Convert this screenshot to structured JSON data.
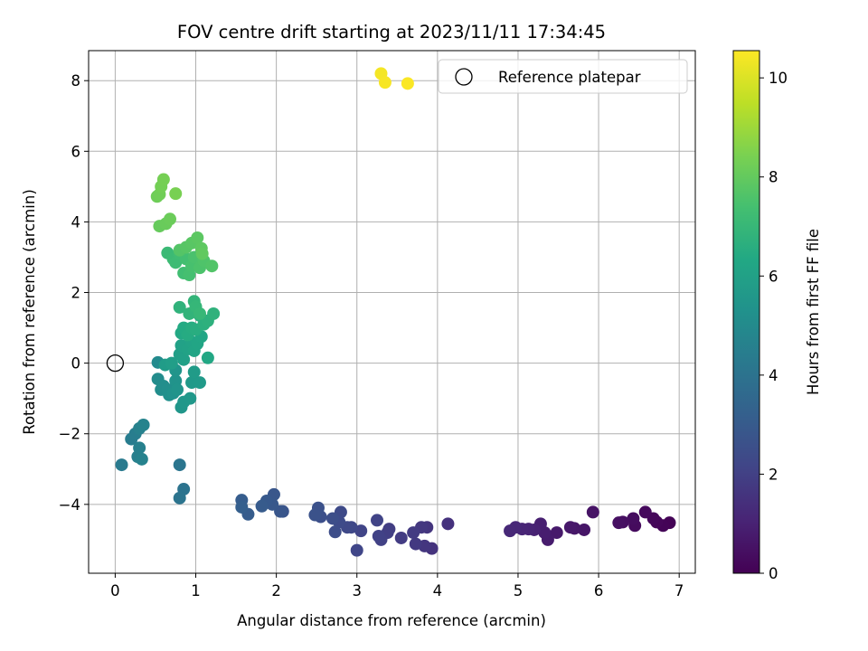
{
  "chart_data": {
    "type": "scatter",
    "title": "FOV centre drift starting at 2023/11/11 17:34:45",
    "xlabel": "Angular distance from reference (arcmin)",
    "ylabel": "Rotation from reference (arcmin)",
    "xlim": [
      -0.33,
      7.2
    ],
    "ylim": [
      -5.95,
      8.85
    ],
    "xticks": [
      0,
      1,
      2,
      3,
      4,
      5,
      6,
      7
    ],
    "yticks": [
      -4,
      -2,
      0,
      2,
      4,
      6,
      8
    ],
    "grid": true,
    "legend": {
      "position": "top-right",
      "entries": [
        "Reference platepar"
      ]
    },
    "reference_point": {
      "x": 0,
      "y": 0,
      "label": "Reference platepar"
    },
    "colorbar": {
      "label": "Hours from first FF file",
      "colormap": "viridis",
      "range": [
        0,
        10.55
      ],
      "ticks": [
        0,
        2,
        4,
        6,
        8,
        10
      ]
    },
    "points": [
      [
        6.88,
        -4.52,
        0.05
      ],
      [
        6.8,
        -4.6,
        0.1
      ],
      [
        6.72,
        -4.5,
        0.15
      ],
      [
        6.68,
        -4.4,
        0.2
      ],
      [
        6.58,
        -4.22,
        0.25
      ],
      [
        6.45,
        -4.6,
        0.3
      ],
      [
        6.43,
        -4.4,
        0.35
      ],
      [
        6.3,
        -4.5,
        0.4
      ],
      [
        6.25,
        -4.52,
        0.45
      ],
      [
        5.93,
        -4.22,
        0.55
      ],
      [
        5.82,
        -4.72,
        0.6
      ],
      [
        5.7,
        -4.68,
        0.65
      ],
      [
        5.65,
        -4.65,
        0.7
      ],
      [
        5.48,
        -4.8,
        0.75
      ],
      [
        5.37,
        -5.0,
        0.8
      ],
      [
        5.33,
        -4.8,
        0.85
      ],
      [
        5.28,
        -4.55,
        0.9
      ],
      [
        5.2,
        -4.72,
        1.0
      ],
      [
        5.13,
        -4.7,
        1.05
      ],
      [
        5.05,
        -4.7,
        1.1
      ],
      [
        4.97,
        -4.65,
        1.15
      ],
      [
        4.9,
        -4.75,
        1.2
      ],
      [
        4.13,
        -4.55,
        1.5
      ],
      [
        3.93,
        -5.25,
        1.55
      ],
      [
        3.87,
        -4.65,
        1.6
      ],
      [
        3.84,
        -5.18,
        1.65
      ],
      [
        3.8,
        -4.65,
        1.7
      ],
      [
        3.73,
        -5.12,
        1.75
      ],
      [
        3.7,
        -4.8,
        1.8
      ],
      [
        3.55,
        -4.95,
        1.85
      ],
      [
        3.4,
        -4.7,
        1.9
      ],
      [
        3.38,
        -4.8,
        1.95
      ],
      [
        3.3,
        -5.0,
        2.0
      ],
      [
        3.27,
        -4.9,
        2.05
      ],
      [
        3.25,
        -4.45,
        2.1
      ],
      [
        3.05,
        -4.75,
        2.15
      ],
      [
        3.0,
        -5.3,
        2.2
      ],
      [
        2.93,
        -4.65,
        2.25
      ],
      [
        2.88,
        -4.65,
        2.3
      ],
      [
        2.8,
        -4.22,
        2.35
      ],
      [
        2.78,
        -4.5,
        2.4
      ],
      [
        2.73,
        -4.78,
        2.45
      ],
      [
        2.7,
        -4.4,
        2.5
      ],
      [
        2.55,
        -4.35,
        2.55
      ],
      [
        2.52,
        -4.1,
        2.6
      ],
      [
        2.48,
        -4.3,
        2.65
      ],
      [
        2.08,
        -4.2,
        2.75
      ],
      [
        2.05,
        -4.2,
        2.8
      ],
      [
        1.97,
        -3.72,
        2.85
      ],
      [
        1.95,
        -4.0,
        2.9
      ],
      [
        1.88,
        -3.9,
        2.95
      ],
      [
        1.82,
        -4.05,
        3.0
      ],
      [
        1.65,
        -4.28,
        3.05
      ],
      [
        1.57,
        -3.88,
        3.1
      ],
      [
        1.57,
        -4.08,
        3.15
      ],
      [
        0.85,
        -3.57,
        4.0
      ],
      [
        0.8,
        -3.82,
        4.05
      ],
      [
        0.8,
        -2.88,
        4.1
      ],
      [
        0.08,
        -2.88,
        4.3
      ],
      [
        0.2,
        -2.15,
        4.4
      ],
      [
        0.25,
        -2.0,
        4.45
      ],
      [
        0.28,
        -2.65,
        4.5
      ],
      [
        0.3,
        -2.4,
        4.55
      ],
      [
        0.3,
        -1.85,
        4.6
      ],
      [
        0.33,
        -2.72,
        4.65
      ],
      [
        0.35,
        -1.75,
        4.7
      ],
      [
        0.53,
        0.02,
        5.0
      ],
      [
        0.53,
        -0.45,
        5.05
      ],
      [
        0.57,
        -0.75,
        5.1
      ],
      [
        0.6,
        -0.65,
        5.15
      ],
      [
        0.65,
        -0.75,
        5.2
      ],
      [
        0.67,
        -0.9,
        5.25
      ],
      [
        0.72,
        -0.85,
        5.3
      ],
      [
        0.75,
        -0.5,
        5.35
      ],
      [
        0.77,
        -0.75,
        5.4
      ],
      [
        0.75,
        -0.2,
        5.45
      ],
      [
        0.82,
        -1.25,
        5.5
      ],
      [
        0.85,
        -1.1,
        5.55
      ],
      [
        0.93,
        -1.0,
        5.6
      ],
      [
        0.95,
        -0.55,
        5.65
      ],
      [
        1.05,
        -0.55,
        5.7
      ],
      [
        0.98,
        -0.25,
        5.75
      ],
      [
        0.62,
        -0.05,
        5.8
      ],
      [
        0.7,
        0.0,
        5.85
      ],
      [
        0.8,
        0.25,
        5.9
      ],
      [
        0.85,
        0.1,
        5.95
      ],
      [
        0.82,
        0.5,
        6.0
      ],
      [
        0.9,
        0.4,
        6.05
      ],
      [
        0.95,
        0.6,
        6.1
      ],
      [
        0.98,
        0.35,
        6.15
      ],
      [
        1.02,
        0.55,
        6.2
      ],
      [
        1.07,
        0.75,
        6.25
      ],
      [
        1.15,
        0.15,
        6.3
      ],
      [
        0.82,
        0.85,
        6.35
      ],
      [
        0.85,
        1.0,
        6.4
      ],
      [
        0.9,
        0.8,
        6.45
      ],
      [
        0.95,
        1.0,
        6.5
      ],
      [
        1.0,
        0.95,
        6.55
      ],
      [
        1.05,
        1.35,
        6.6
      ],
      [
        1.1,
        1.1,
        6.65
      ],
      [
        1.15,
        1.2,
        6.7
      ],
      [
        1.22,
        1.4,
        6.75
      ],
      [
        0.8,
        1.58,
        6.8
      ],
      [
        0.92,
        1.4,
        6.85
      ],
      [
        0.98,
        1.75,
        6.9
      ],
      [
        1.0,
        1.6,
        6.95
      ],
      [
        1.05,
        1.4,
        7.0
      ],
      [
        0.65,
        3.12,
        7.1
      ],
      [
        0.72,
        2.95,
        7.15
      ],
      [
        0.75,
        2.85,
        7.2
      ],
      [
        0.8,
        3.1,
        7.25
      ],
      [
        0.85,
        2.55,
        7.3
      ],
      [
        0.88,
        2.95,
        7.35
      ],
      [
        0.92,
        2.5,
        7.4
      ],
      [
        0.95,
        2.75,
        7.45
      ],
      [
        0.98,
        3.0,
        7.5
      ],
      [
        1.05,
        2.7,
        7.55
      ],
      [
        1.1,
        2.9,
        7.6
      ],
      [
        1.2,
        2.75,
        7.65
      ],
      [
        0.8,
        3.2,
        7.7
      ],
      [
        0.88,
        3.28,
        7.75
      ],
      [
        0.95,
        3.4,
        7.8
      ],
      [
        1.02,
        3.55,
        7.85
      ],
      [
        1.07,
        3.25,
        7.9
      ],
      [
        1.08,
        3.1,
        7.95
      ],
      [
        0.55,
        3.88,
        8.05
      ],
      [
        0.63,
        3.95,
        8.1
      ],
      [
        0.68,
        4.08,
        8.15
      ],
      [
        0.52,
        4.72,
        8.2
      ],
      [
        0.55,
        4.78,
        8.25
      ],
      [
        0.57,
        5.0,
        8.3
      ],
      [
        0.6,
        5.2,
        8.35
      ],
      [
        0.75,
        4.8,
        8.4
      ],
      [
        3.3,
        8.2,
        10.4
      ],
      [
        3.35,
        7.95,
        10.45
      ],
      [
        3.63,
        7.92,
        10.5
      ]
    ]
  }
}
